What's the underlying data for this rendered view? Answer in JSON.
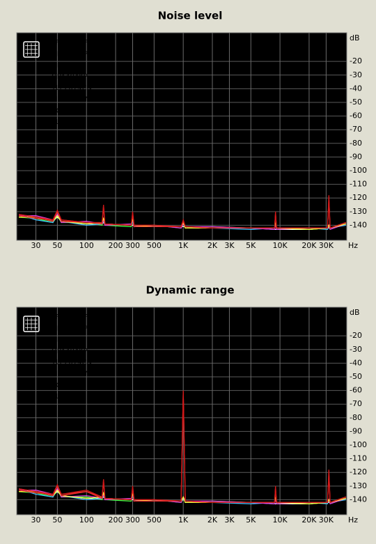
{
  "chart_data": [
    {
      "type": "line",
      "title": "Noise level",
      "x_label": "Hz",
      "y_label": "dB",
      "log_x": true,
      "grid": true,
      "legend": "top-left",
      "x": [
        20,
        30,
        45,
        50,
        55,
        100,
        145,
        150,
        155,
        290,
        300,
        310,
        500,
        950,
        1000,
        1050,
        2000,
        5000,
        8800,
        9000,
        9200,
        20000,
        31000,
        32000,
        33000,
        48000
      ],
      "xlim": [
        19,
        49000
      ],
      "ylim": [
        -151,
        1
      ],
      "xticks": [
        30,
        50,
        100,
        200,
        300,
        500,
        {
          "value": 1000,
          "label": "1K"
        },
        {
          "value": 2000,
          "label": "2K"
        },
        {
          "value": 3000,
          "label": "3K"
        },
        {
          "value": 5000,
          "label": "5K"
        },
        {
          "value": 10000,
          "label": "10K"
        },
        {
          "value": 20000,
          "label": "20K"
        },
        {
          "value": 30000,
          "label": "30K"
        }
      ],
      "yticks": [
        -20,
        -30,
        -40,
        -50,
        -60,
        -70,
        -80,
        -90,
        -100,
        -110,
        -120,
        -130,
        -140
      ],
      "series": [
        {
          "name": "FF800 REF",
          "color": "#ffffff",
          "values": [
            -133,
            -134,
            -137,
            -134,
            -137,
            -139,
            -139,
            -138,
            -139,
            -140,
            -140,
            -140,
            -141,
            -141,
            -141,
            -141,
            -142,
            -142,
            -143,
            -143,
            -143,
            -143,
            -142,
            -142,
            -142,
            -138
          ]
        },
        {
          "name": "OPA627AP",
          "color": "#40ff40",
          "values": [
            -134,
            -135,
            -138,
            -133,
            -138,
            -138,
            -140,
            -136,
            -140,
            -141,
            -136,
            -141,
            -140,
            -142,
            -138,
            -142,
            -141,
            -142,
            -142,
            -139,
            -142,
            -143,
            -142,
            -141,
            -142,
            -139
          ]
        },
        {
          "name": "OP27G",
          "color": "#40c0ff",
          "values": [
            -132,
            -136,
            -138,
            -132,
            -137,
            -140,
            -139,
            -137,
            -139,
            -140,
            -137,
            -140,
            -141,
            -141,
            -139,
            -141,
            -142,
            -143,
            -142,
            -138,
            -142,
            -142,
            -143,
            -140,
            -142,
            -140
          ]
        },
        {
          "name": "OPA404KP",
          "color": "#e040e0",
          "values": [
            -133,
            -133,
            -136,
            -132,
            -138,
            -137,
            -139,
            -136,
            -140,
            -139,
            -136,
            -141,
            -140,
            -142,
            -139,
            -141,
            -141,
            -142,
            -143,
            -139,
            -143,
            -142,
            -142,
            -140,
            -143,
            -139
          ]
        },
        {
          "name": "TLE2074CN",
          "color": "#ffff40",
          "values": [
            -134,
            -134,
            -137,
            -133,
            -137,
            -139,
            -138,
            -135,
            -139,
            -140,
            -135,
            -140,
            -141,
            -141,
            -138,
            -142,
            -142,
            -142,
            -142,
            -138,
            -142,
            -143,
            -142,
            -140,
            -142,
            -139
          ]
        },
        {
          "name": "MC4558CN",
          "color": "#e02020",
          "values": [
            -133,
            -135,
            -136,
            -130,
            -136,
            -138,
            -138,
            -127,
            -139,
            -140,
            -132,
            -140,
            -140,
            -141,
            -137,
            -141,
            -142,
            -142,
            -142,
            -132,
            -142,
            -142,
            -142,
            -122,
            -142,
            -138
          ]
        },
        {
          "name": "RC4560",
          "color": "#f03030",
          "values": [
            -132,
            -134,
            -137,
            -130,
            -137,
            -138,
            -139,
            -126,
            -139,
            -140,
            -131,
            -141,
            -141,
            -141,
            -137,
            -141,
            -142,
            -142,
            -142,
            -131,
            -142,
            -142,
            -142,
            -120,
            -142,
            -138
          ]
        },
        {
          "name": "TL072CN",
          "color": "#d01818",
          "values": [
            -132,
            -134,
            -136,
            -129,
            -136,
            -138,
            -138,
            -125,
            -139,
            -140,
            -130,
            -140,
            -140,
            -141,
            -136,
            -141,
            -142,
            -142,
            -142,
            -130,
            -142,
            -142,
            -142,
            -118,
            -142,
            -138
          ]
        }
      ]
    },
    {
      "type": "line",
      "title": "Dynamic range",
      "x_label": "Hz",
      "y_label": "dB",
      "log_x": true,
      "grid": true,
      "legend": "top-left",
      "x": [
        20,
        30,
        45,
        50,
        55,
        100,
        145,
        150,
        155,
        290,
        300,
        310,
        500,
        950,
        1000,
        1050,
        2000,
        5000,
        8800,
        9000,
        9200,
        20000,
        31000,
        32000,
        33000,
        48000
      ],
      "xlim": [
        19,
        49000
      ],
      "ylim": [
        -151,
        1
      ],
      "xticks": [
        30,
        50,
        100,
        200,
        300,
        500,
        {
          "value": 1000,
          "label": "1K"
        },
        {
          "value": 2000,
          "label": "2K"
        },
        {
          "value": 3000,
          "label": "3K"
        },
        {
          "value": 5000,
          "label": "5K"
        },
        {
          "value": 10000,
          "label": "10K"
        },
        {
          "value": 20000,
          "label": "20K"
        },
        {
          "value": 30000,
          "label": "30K"
        }
      ],
      "yticks": [
        -20,
        -30,
        -40,
        -50,
        -60,
        -70,
        -80,
        -90,
        -100,
        -110,
        -120,
        -130,
        -140
      ],
      "series": [
        {
          "name": "FF800 REF",
          "color": "#ffffff",
          "values": [
            -133,
            -134,
            -137,
            -134,
            -137,
            -139,
            -139,
            -138,
            -139,
            -140,
            -140,
            -140,
            -141,
            -141,
            -140,
            -141,
            -142,
            -142,
            -143,
            -143,
            -143,
            -143,
            -142,
            -142,
            -142,
            -138
          ]
        },
        {
          "name": "OPA627AP",
          "color": "#40ff40",
          "values": [
            -134,
            -135,
            -138,
            -133,
            -138,
            -138,
            -140,
            -136,
            -140,
            -141,
            -136,
            -141,
            -140,
            -142,
            -139,
            -142,
            -141,
            -142,
            -142,
            -139,
            -142,
            -143,
            -142,
            -141,
            -142,
            -139
          ]
        },
        {
          "name": "OP27G",
          "color": "#40c0ff",
          "values": [
            -132,
            -136,
            -138,
            -132,
            -137,
            -140,
            -139,
            -137,
            -139,
            -140,
            -137,
            -140,
            -141,
            -141,
            -139,
            -141,
            -142,
            -143,
            -142,
            -138,
            -142,
            -142,
            -143,
            -140,
            -142,
            -140
          ]
        },
        {
          "name": "OPA404KP",
          "color": "#e040e0",
          "values": [
            -133,
            -133,
            -136,
            -132,
            -138,
            -137,
            -139,
            -136,
            -140,
            -139,
            -136,
            -141,
            -140,
            -142,
            -138,
            -141,
            -141,
            -142,
            -143,
            -139,
            -143,
            -142,
            -142,
            -140,
            -143,
            -139
          ]
        },
        {
          "name": "TLE2074CN",
          "color": "#ffff40",
          "values": [
            -134,
            -134,
            -137,
            -133,
            -137,
            -139,
            -138,
            -135,
            -139,
            -140,
            -135,
            -140,
            -141,
            -141,
            -138,
            -142,
            -142,
            -142,
            -142,
            -138,
            -142,
            -143,
            -142,
            -140,
            -142,
            -139
          ]
        },
        {
          "name": "MC4558CN",
          "color": "#e02020",
          "values": [
            -133,
            -135,
            -136,
            -130,
            -136,
            -134,
            -138,
            -127,
            -139,
            -140,
            -132,
            -140,
            -140,
            -141,
            -62,
            -141,
            -142,
            -142,
            -142,
            -132,
            -142,
            -142,
            -142,
            -122,
            -142,
            -138
          ]
        },
        {
          "name": "RC4560",
          "color": "#f03030",
          "values": [
            -132,
            -134,
            -137,
            -130,
            -137,
            -134,
            -139,
            -126,
            -139,
            -140,
            -131,
            -141,
            -141,
            -141,
            -61,
            -141,
            -142,
            -142,
            -142,
            -131,
            -142,
            -142,
            -142,
            -120,
            -142,
            -138
          ]
        },
        {
          "name": "TL072CN",
          "color": "#d01818",
          "values": [
            -132,
            -134,
            -136,
            -129,
            -136,
            -133,
            -138,
            -125,
            -139,
            -140,
            -130,
            -140,
            -140,
            -141,
            -60,
            -141,
            -142,
            -142,
            -142,
            -130,
            -142,
            -142,
            -142,
            -118,
            -142,
            -138
          ]
        }
      ]
    }
  ]
}
